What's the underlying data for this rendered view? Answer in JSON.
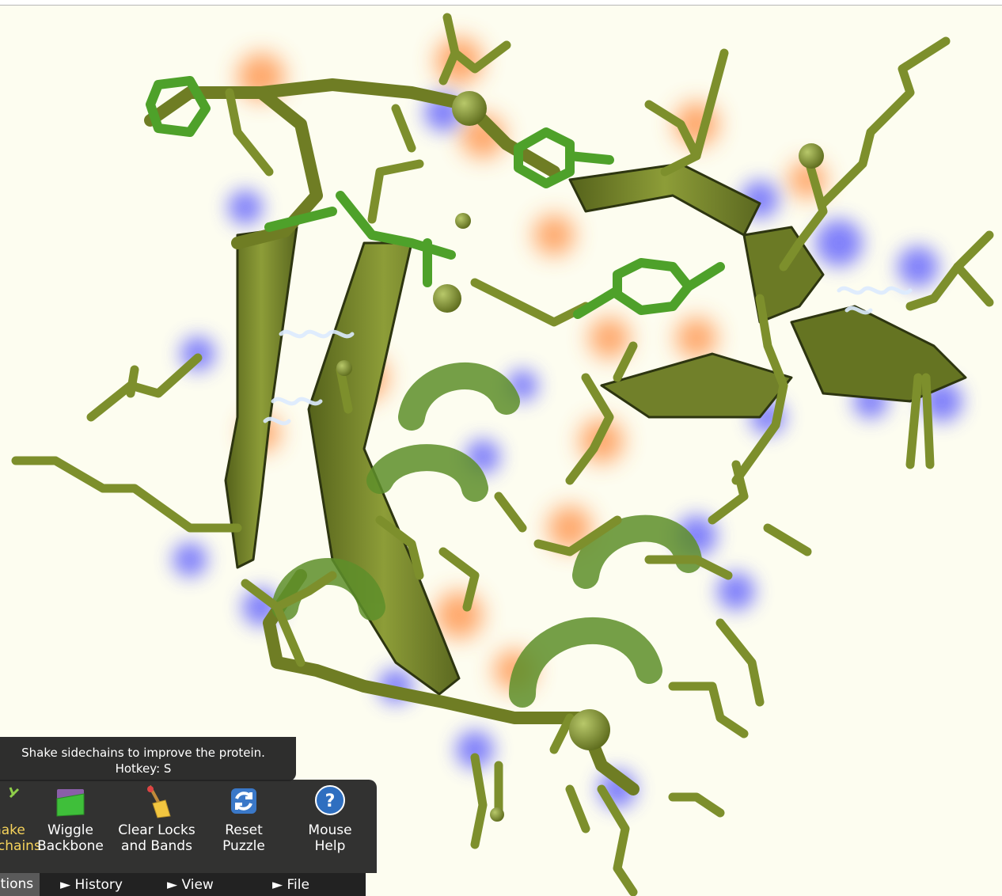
{
  "tooltip": {
    "text": "Shake sidechains to improve the protein.",
    "hotkey": "Hotkey: S"
  },
  "toolbar": {
    "tools": [
      {
        "label_1": "Shake",
        "label_2": "Sidechains",
        "icon": "shake-icon",
        "active": true
      },
      {
        "label_1": "Wiggle",
        "label_2": "Backbone",
        "icon": "wiggle-icon"
      },
      {
        "label_1": "Clear Locks",
        "label_2": "and Bands",
        "icon": "broom-icon"
      },
      {
        "label_1": "Reset",
        "label_2": "Puzzle",
        "icon": "reset-icon"
      },
      {
        "label_1": "Mouse",
        "label_2": "Help",
        "icon": "help-icon"
      }
    ]
  },
  "tabs": [
    {
      "label": "Actions",
      "selected": true
    },
    {
      "label": "► History"
    },
    {
      "label": "► View"
    },
    {
      "label": "► File"
    }
  ],
  "colors": {
    "background": "#fdfdf0",
    "sidechain": "#7d8f2c",
    "backbone": "#6c7a25",
    "hydrophobic_glow": "#ff8a3c",
    "hydrophilic_glow": "#4b4bff",
    "highlight_green": "#4ea12a",
    "active_tool_text": "#f6d35b"
  }
}
